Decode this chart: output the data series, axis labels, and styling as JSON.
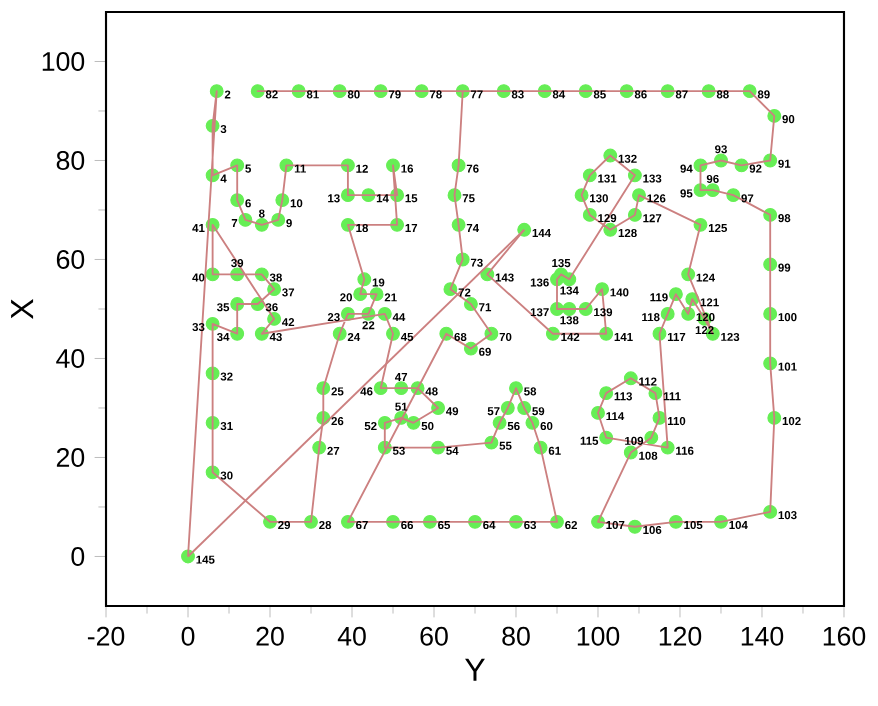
{
  "chart_data": {
    "type": "line",
    "xlabel": "Y",
    "ylabel": "X",
    "xlim": [
      -20,
      160
    ],
    "ylim": [
      -10,
      110
    ],
    "xticks": [
      -20,
      0,
      20,
      40,
      60,
      80,
      100,
      120,
      140,
      160
    ],
    "yticks": [
      0,
      20,
      40,
      60,
      80,
      100
    ],
    "series": [
      {
        "color": "#cc8080",
        "marker": "none",
        "x": [
          0,
          7,
          6,
          6,
          12,
          12,
          14,
          18,
          22,
          23,
          24,
          39,
          39,
          44,
          51,
          50,
          51,
          39,
          43,
          42,
          46,
          44,
          39,
          37,
          33,
          33,
          32,
          30,
          20,
          6,
          6,
          6,
          6,
          12,
          12,
          17,
          21,
          18,
          12,
          6,
          6,
          21,
          18,
          48,
          50,
          47,
          52,
          56,
          61,
          55,
          52,
          48,
          48,
          61,
          74,
          76,
          78,
          80,
          82,
          84,
          86,
          90,
          80,
          70,
          59,
          50,
          39,
          63,
          69,
          74,
          69,
          64,
          67,
          66,
          65,
          66,
          67,
          57,
          47,
          37,
          27,
          17,
          77,
          87,
          97,
          107,
          117,
          127,
          137,
          143,
          142,
          135,
          130,
          125,
          125,
          128,
          133,
          142,
          142,
          142,
          142,
          143,
          142,
          130,
          119,
          109,
          100,
          108,
          113,
          115,
          114,
          108,
          102,
          100,
          102,
          117,
          115,
          117,
          119,
          122,
          123,
          126,
          128,
          122,
          125,
          110,
          109,
          103,
          98,
          96,
          98,
          103,
          109,
          93,
          91,
          90,
          90,
          93,
          97,
          101,
          102,
          89,
          73,
          82
        ],
        "values": [
          0,
          94,
          87,
          77,
          79,
          72,
          68,
          67,
          68,
          72,
          79,
          79,
          73,
          73,
          73,
          79,
          67,
          67,
          56,
          53,
          53,
          49,
          49,
          45,
          34,
          28,
          22,
          7,
          7,
          17,
          27,
          37,
          47,
          45,
          51,
          51,
          54,
          57,
          57,
          57,
          67,
          48,
          45,
          49,
          45,
          34,
          34,
          34,
          30,
          27,
          28,
          27,
          22,
          22,
          23,
          27,
          30,
          34,
          30,
          27,
          22,
          7,
          7,
          7,
          7,
          7,
          7,
          45,
          42,
          45,
          51,
          54,
          60,
          67,
          73,
          79,
          94,
          94,
          94,
          94,
          94,
          94,
          94,
          94,
          94,
          94,
          94,
          94,
          94,
          89,
          80,
          79,
          80,
          79,
          74,
          74,
          73,
          69,
          59,
          49,
          39,
          28,
          9,
          7,
          7,
          6,
          7,
          21,
          24,
          28,
          33,
          36,
          33,
          29,
          24,
          22,
          45,
          49,
          53,
          49,
          52,
          48,
          45,
          57,
          67,
          73,
          69,
          66,
          69,
          73,
          77,
          81,
          77,
          56,
          57,
          56,
          50,
          50,
          50,
          54,
          45,
          45,
          57,
          66
        ]
      },
      {
        "color": "#cc8080",
        "marker": "none",
        "x": [
          82,
          0
        ],
        "values": [
          66,
          0
        ]
      },
      {
        "type": "scatter",
        "color": "#66ee55",
        "marker": "circle",
        "x": [
          7,
          6,
          6,
          12,
          12,
          14,
          18,
          22,
          23,
          24,
          39,
          39,
          44,
          51,
          50,
          51,
          39,
          43,
          42,
          46,
          44,
          39,
          37,
          33,
          33,
          32,
          30,
          20,
          6,
          6,
          6,
          6,
          12,
          12,
          17,
          21,
          18,
          12,
          6,
          6,
          21,
          18,
          48,
          50,
          47,
          52,
          56,
          61,
          55,
          52,
          48,
          48,
          61,
          74,
          76,
          78,
          80,
          82,
          84,
          86,
          90,
          80,
          70,
          59,
          50,
          39,
          63,
          69,
          74,
          69,
          64,
          67,
          66,
          65,
          66,
          67,
          57,
          47,
          37,
          27,
          17,
          77,
          87,
          97,
          107,
          117,
          127,
          137,
          143,
          142,
          135,
          130,
          125,
          125,
          128,
          133,
          142,
          142,
          142,
          142,
          143,
          142,
          130,
          119,
          109,
          100,
          108,
          113,
          115,
          114,
          108,
          102,
          100,
          102,
          117,
          115,
          117,
          119,
          122,
          123,
          126,
          128,
          122,
          125,
          110,
          109,
          103,
          98,
          96,
          98,
          103,
          109,
          93,
          91,
          90,
          90,
          93,
          97,
          101,
          102,
          89,
          73,
          82,
          0
        ],
        "values": [
          94,
          87,
          77,
          79,
          72,
          68,
          67,
          68,
          72,
          79,
          79,
          73,
          73,
          73,
          79,
          67,
          67,
          56,
          53,
          53,
          49,
          49,
          45,
          34,
          28,
          22,
          7,
          7,
          17,
          27,
          37,
          47,
          45,
          51,
          51,
          54,
          57,
          57,
          57,
          67,
          48,
          45,
          49,
          45,
          34,
          34,
          34,
          30,
          27,
          28,
          27,
          22,
          22,
          23,
          27,
          30,
          34,
          30,
          27,
          22,
          7,
          7,
          7,
          7,
          7,
          7,
          45,
          42,
          45,
          51,
          54,
          60,
          67,
          73,
          79,
          94,
          94,
          94,
          94,
          94,
          94,
          94,
          94,
          94,
          94,
          94,
          94,
          94,
          89,
          80,
          79,
          80,
          79,
          74,
          74,
          73,
          69,
          59,
          49,
          39,
          28,
          9,
          7,
          7,
          6,
          7,
          21,
          24,
          28,
          33,
          36,
          33,
          29,
          24,
          22,
          45,
          49,
          53,
          49,
          52,
          48,
          45,
          57,
          67,
          73,
          69,
          66,
          69,
          73,
          77,
          81,
          77,
          56,
          57,
          56,
          50,
          50,
          50,
          54,
          45,
          45,
          57,
          66,
          0
        ]
      }
    ],
    "annotations": [
      {
        "text": "2",
        "x": 7,
        "y": 94
      },
      {
        "text": "3",
        "x": 6,
        "y": 87
      },
      {
        "text": "4",
        "x": 6,
        "y": 77
      },
      {
        "text": "5",
        "x": 12,
        "y": 79
      },
      {
        "text": "6",
        "x": 12,
        "y": 72
      },
      {
        "text": "7",
        "x": 14,
        "y": 68
      },
      {
        "text": "8",
        "x": 18,
        "y": 67
      },
      {
        "text": "9",
        "x": 22,
        "y": 68
      },
      {
        "text": "10",
        "x": 23,
        "y": 72
      },
      {
        "text": "11",
        "x": 24,
        "y": 79
      },
      {
        "text": "12",
        "x": 39,
        "y": 79
      },
      {
        "text": "13",
        "x": 39,
        "y": 73
      },
      {
        "text": "14",
        "x": 44,
        "y": 73
      },
      {
        "text": "15",
        "x": 51,
        "y": 73
      },
      {
        "text": "16",
        "x": 50,
        "y": 79
      },
      {
        "text": "17",
        "x": 51,
        "y": 67
      },
      {
        "text": "18",
        "x": 39,
        "y": 67
      },
      {
        "text": "19",
        "x": 43,
        "y": 56
      },
      {
        "text": "20",
        "x": 42,
        "y": 53
      },
      {
        "text": "21",
        "x": 46,
        "y": 53
      },
      {
        "text": "22",
        "x": 44,
        "y": 49
      },
      {
        "text": "23",
        "x": 39,
        "y": 49
      },
      {
        "text": "24",
        "x": 37,
        "y": 45
      },
      {
        "text": "25",
        "x": 33,
        "y": 34
      },
      {
        "text": "26",
        "x": 33,
        "y": 28
      },
      {
        "text": "27",
        "x": 32,
        "y": 22
      },
      {
        "text": "28",
        "x": 30,
        "y": 7
      },
      {
        "text": "29",
        "x": 20,
        "y": 7
      },
      {
        "text": "30",
        "x": 6,
        "y": 17
      },
      {
        "text": "31",
        "x": 6,
        "y": 27
      },
      {
        "text": "32",
        "x": 6,
        "y": 37
      },
      {
        "text": "33",
        "x": 6,
        "y": 47
      },
      {
        "text": "34",
        "x": 12,
        "y": 45
      },
      {
        "text": "35",
        "x": 12,
        "y": 51
      },
      {
        "text": "36",
        "x": 17,
        "y": 51
      },
      {
        "text": "37",
        "x": 21,
        "y": 54
      },
      {
        "text": "38",
        "x": 18,
        "y": 57
      },
      {
        "text": "39",
        "x": 12,
        "y": 57
      },
      {
        "text": "40",
        "x": 6,
        "y": 57
      },
      {
        "text": "41",
        "x": 6,
        "y": 67
      },
      {
        "text": "42",
        "x": 21,
        "y": 48
      },
      {
        "text": "43",
        "x": 18,
        "y": 45
      },
      {
        "text": "44",
        "x": 48,
        "y": 49
      },
      {
        "text": "45",
        "x": 50,
        "y": 45
      },
      {
        "text": "46",
        "x": 47,
        "y": 34
      },
      {
        "text": "47",
        "x": 52,
        "y": 34
      },
      {
        "text": "48",
        "x": 56,
        "y": 34
      },
      {
        "text": "49",
        "x": 61,
        "y": 30
      },
      {
        "text": "50",
        "x": 55,
        "y": 27
      },
      {
        "text": "51",
        "x": 52,
        "y": 28
      },
      {
        "text": "52",
        "x": 48,
        "y": 27
      },
      {
        "text": "53",
        "x": 48,
        "y": 22
      },
      {
        "text": "54",
        "x": 61,
        "y": 22
      },
      {
        "text": "55",
        "x": 74,
        "y": 23
      },
      {
        "text": "56",
        "x": 76,
        "y": 27
      },
      {
        "text": "57",
        "x": 78,
        "y": 30
      },
      {
        "text": "58",
        "x": 80,
        "y": 34
      },
      {
        "text": "59",
        "x": 82,
        "y": 30
      },
      {
        "text": "60",
        "x": 84,
        "y": 27
      },
      {
        "text": "61",
        "x": 86,
        "y": 22
      },
      {
        "text": "62",
        "x": 90,
        "y": 7
      },
      {
        "text": "63",
        "x": 80,
        "y": 7
      },
      {
        "text": "64",
        "x": 70,
        "y": 7
      },
      {
        "text": "65",
        "x": 59,
        "y": 7
      },
      {
        "text": "66",
        "x": 50,
        "y": 7
      },
      {
        "text": "67",
        "x": 39,
        "y": 7
      },
      {
        "text": "68",
        "x": 63,
        "y": 45
      },
      {
        "text": "69",
        "x": 69,
        "y": 42
      },
      {
        "text": "70",
        "x": 74,
        "y": 45
      },
      {
        "text": "71",
        "x": 69,
        "y": 51
      },
      {
        "text": "72",
        "x": 64,
        "y": 54
      },
      {
        "text": "73",
        "x": 67,
        "y": 60
      },
      {
        "text": "74",
        "x": 66,
        "y": 67
      },
      {
        "text": "75",
        "x": 65,
        "y": 73
      },
      {
        "text": "76",
        "x": 66,
        "y": 79
      },
      {
        "text": "77",
        "x": 67,
        "y": 94
      },
      {
        "text": "78",
        "x": 57,
        "y": 94
      },
      {
        "text": "79",
        "x": 47,
        "y": 94
      },
      {
        "text": "80",
        "x": 37,
        "y": 94
      },
      {
        "text": "81",
        "x": 27,
        "y": 94
      },
      {
        "text": "82",
        "x": 17,
        "y": 94
      },
      {
        "text": "83",
        "x": 77,
        "y": 94
      },
      {
        "text": "84",
        "x": 87,
        "y": 94
      },
      {
        "text": "85",
        "x": 97,
        "y": 94
      },
      {
        "text": "86",
        "x": 107,
        "y": 94
      },
      {
        "text": "87",
        "x": 117,
        "y": 94
      },
      {
        "text": "88",
        "x": 127,
        "y": 94
      },
      {
        "text": "89",
        "x": 137,
        "y": 94
      },
      {
        "text": "90",
        "x": 143,
        "y": 89
      },
      {
        "text": "91",
        "x": 142,
        "y": 80
      },
      {
        "text": "92",
        "x": 135,
        "y": 79
      },
      {
        "text": "93",
        "x": 130,
        "y": 80
      },
      {
        "text": "94",
        "x": 125,
        "y": 79
      },
      {
        "text": "95",
        "x": 125,
        "y": 74
      },
      {
        "text": "96",
        "x": 128,
        "y": 74
      },
      {
        "text": "97",
        "x": 133,
        "y": 73
      },
      {
        "text": "98",
        "x": 142,
        "y": 69
      },
      {
        "text": "99",
        "x": 142,
        "y": 59
      },
      {
        "text": "100",
        "x": 142,
        "y": 49
      },
      {
        "text": "101",
        "x": 142,
        "y": 39
      },
      {
        "text": "102",
        "x": 143,
        "y": 28
      },
      {
        "text": "103",
        "x": 142,
        "y": 9
      },
      {
        "text": "104",
        "x": 130,
        "y": 7
      },
      {
        "text": "105",
        "x": 119,
        "y": 7
      },
      {
        "text": "106",
        "x": 109,
        "y": 6
      },
      {
        "text": "107",
        "x": 100,
        "y": 7
      },
      {
        "text": "108",
        "x": 108,
        "y": 21
      },
      {
        "text": "109",
        "x": 113,
        "y": 24
      },
      {
        "text": "110",
        "x": 115,
        "y": 28
      },
      {
        "text": "111",
        "x": 114,
        "y": 33
      },
      {
        "text": "112",
        "x": 108,
        "y": 36
      },
      {
        "text": "113",
        "x": 102,
        "y": 33
      },
      {
        "text": "114",
        "x": 100,
        "y": 29
      },
      {
        "text": "115",
        "x": 102,
        "y": 24
      },
      {
        "text": "116",
        "x": 117,
        "y": 22
      },
      {
        "text": "117",
        "x": 115,
        "y": 45
      },
      {
        "text": "118",
        "x": 117,
        "y": 49
      },
      {
        "text": "119",
        "x": 119,
        "y": 53
      },
      {
        "text": "120",
        "x": 122,
        "y": 49
      },
      {
        "text": "121",
        "x": 123,
        "y": 52
      },
      {
        "text": "122",
        "x": 126,
        "y": 48
      },
      {
        "text": "123",
        "x": 128,
        "y": 45
      },
      {
        "text": "124",
        "x": 122,
        "y": 57
      },
      {
        "text": "125",
        "x": 125,
        "y": 67
      },
      {
        "text": "126",
        "x": 110,
        "y": 73
      },
      {
        "text": "127",
        "x": 109,
        "y": 69
      },
      {
        "text": "128",
        "x": 103,
        "y": 66
      },
      {
        "text": "129",
        "x": 98,
        "y": 69
      },
      {
        "text": "130",
        "x": 96,
        "y": 73
      },
      {
        "text": "131",
        "x": 98,
        "y": 77
      },
      {
        "text": "132",
        "x": 103,
        "y": 81
      },
      {
        "text": "133",
        "x": 109,
        "y": 77
      },
      {
        "text": "134",
        "x": 93,
        "y": 56
      },
      {
        "text": "135",
        "x": 91,
        "y": 57
      },
      {
        "text": "136",
        "x": 90,
        "y": 56
      },
      {
        "text": "137",
        "x": 90,
        "y": 50
      },
      {
        "text": "138",
        "x": 93,
        "y": 50
      },
      {
        "text": "139",
        "x": 97,
        "y": 50
      },
      {
        "text": "140",
        "x": 101,
        "y": 54
      },
      {
        "text": "141",
        "x": 102,
        "y": 45
      },
      {
        "text": "142",
        "x": 89,
        "y": 45
      },
      {
        "text": "143",
        "x": 73,
        "y": 57
      },
      {
        "text": "144",
        "x": 82,
        "y": 66
      },
      {
        "text": "145",
        "x": 0,
        "y": 0
      }
    ]
  }
}
